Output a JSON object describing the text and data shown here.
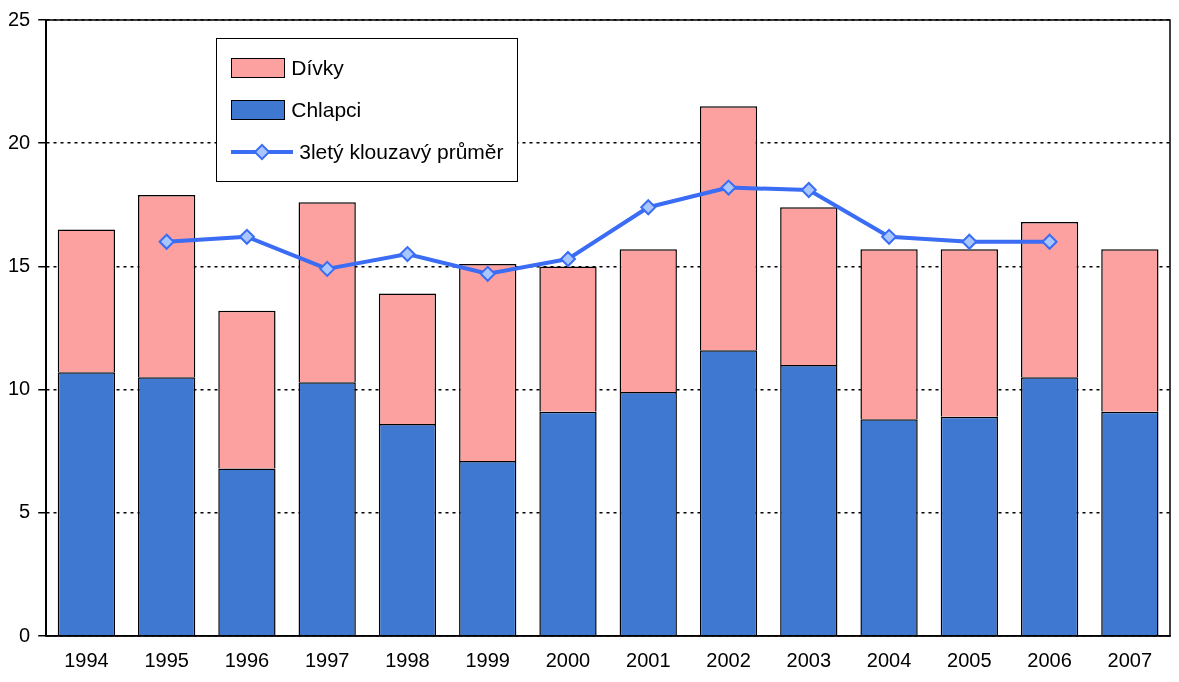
{
  "chart_data": {
    "type": "bar",
    "stacked": true,
    "categories": [
      "1994",
      "1995",
      "1996",
      "1997",
      "1998",
      "1999",
      "2000",
      "2001",
      "2002",
      "2003",
      "2004",
      "2005",
      "2006",
      "2007"
    ],
    "series": [
      {
        "name": "Chlapci",
        "color": "#3f78d0",
        "values": [
          10.7,
          10.5,
          6.8,
          10.3,
          8.6,
          7.1,
          9.1,
          9.9,
          11.6,
          11.0,
          8.8,
          8.9,
          10.5,
          9.1
        ]
      },
      {
        "name": "Dívky",
        "color": "#fca0a0",
        "values": [
          5.8,
          7.4,
          6.4,
          7.3,
          5.3,
          8.0,
          5.9,
          5.8,
          9.9,
          6.4,
          6.9,
          6.8,
          6.3,
          6.6
        ]
      },
      {
        "name": "3letý klouzavý průměr",
        "type": "line",
        "color": "#3a6cf4",
        "marker": "diamond",
        "values": [
          null,
          16.0,
          16.2,
          14.9,
          15.5,
          14.7,
          15.3,
          17.4,
          18.2,
          18.1,
          16.2,
          16.0,
          16.0,
          null
        ]
      }
    ],
    "ylim": [
      0,
      25
    ],
    "yticks": [
      0,
      5,
      10,
      15,
      20,
      25
    ],
    "grid": "y",
    "legend": "top left"
  }
}
